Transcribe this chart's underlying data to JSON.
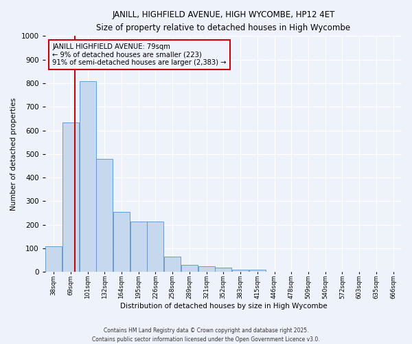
{
  "title1": "JANILL, HIGHFIELD AVENUE, HIGH WYCOMBE, HP12 4ET",
  "title2": "Size of property relative to detached houses in High Wycombe",
  "xlabel": "Distribution of detached houses by size in High Wycombe",
  "ylabel": "Number of detached properties",
  "bar_color": "#c5d8ed",
  "bar_edge_color": "#5b8ec4",
  "bg_color": "#eef2fa",
  "grid_color": "#ffffff",
  "annotation_text": "JANILL HIGHFIELD AVENUE: 79sqm\n← 9% of detached houses are smaller (223)\n91% of semi-detached houses are larger (2,383) →",
  "annotation_box_color": "#cc0000",
  "vline_color": "#cc0000",
  "vline_x_idx": 1,
  "categories": [
    "38sqm",
    "69sqm",
    "101sqm",
    "132sqm",
    "164sqm",
    "195sqm",
    "226sqm",
    "258sqm",
    "289sqm",
    "321sqm",
    "352sqm",
    "383sqm",
    "415sqm",
    "446sqm",
    "478sqm",
    "509sqm",
    "540sqm",
    "572sqm",
    "603sqm",
    "635sqm",
    "666sqm"
  ],
  "values": [
    110,
    635,
    810,
    480,
    255,
    213,
    213,
    65,
    30,
    25,
    18,
    10,
    10,
    0,
    0,
    0,
    0,
    0,
    0,
    0,
    0
  ],
  "ylim": [
    0,
    1000
  ],
  "yticks": [
    0,
    100,
    200,
    300,
    400,
    500,
    600,
    700,
    800,
    900,
    1000
  ],
  "footer1": "Contains HM Land Registry data © Crown copyright and database right 2025.",
  "footer2": "Contains public sector information licensed under the Open Government Licence v3.0."
}
